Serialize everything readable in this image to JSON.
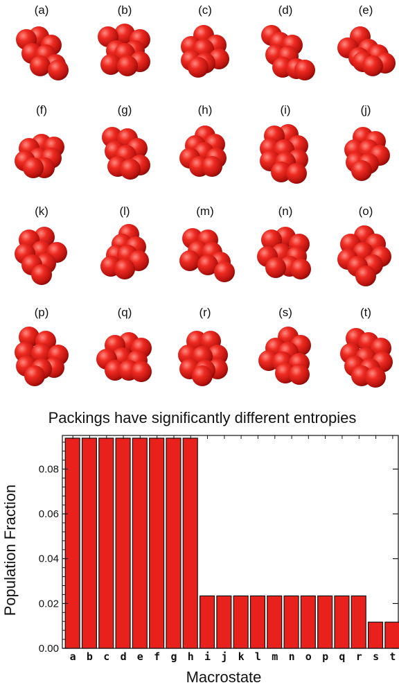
{
  "packings": {
    "labels": [
      "(a)",
      "(b)",
      "(c)",
      "(d)",
      "(e)",
      "(f)",
      "(g)",
      "(h)",
      "(i)",
      "(j)",
      "(k)",
      "(l)",
      "(m)",
      "(n)",
      "(o)",
      "(p)",
      "(q)",
      "(r)",
      "(s)",
      "(t)"
    ],
    "sphere_color": "#e8211d"
  },
  "chart_data": {
    "type": "bar",
    "title": "Packings have significantly different entropies",
    "xlabel": "Macrostate",
    "ylabel": "Population Fraction",
    "categories": [
      "a",
      "b",
      "c",
      "d",
      "e",
      "f",
      "g",
      "h",
      "i",
      "j",
      "k",
      "l",
      "m",
      "n",
      "o",
      "p",
      "q",
      "r",
      "s",
      "t"
    ],
    "values": [
      0.0938,
      0.0938,
      0.0938,
      0.0938,
      0.0938,
      0.0938,
      0.0938,
      0.0938,
      0.0234,
      0.0234,
      0.0234,
      0.0234,
      0.0234,
      0.0234,
      0.0234,
      0.0234,
      0.0234,
      0.0234,
      0.0117,
      0.0117
    ],
    "ylim": [
      0,
      0.095
    ],
    "yticks": [
      "0.00",
      "0.02",
      "0.04",
      "0.06",
      "0.08"
    ],
    "bar_color": "#e8211d",
    "grid": false
  }
}
